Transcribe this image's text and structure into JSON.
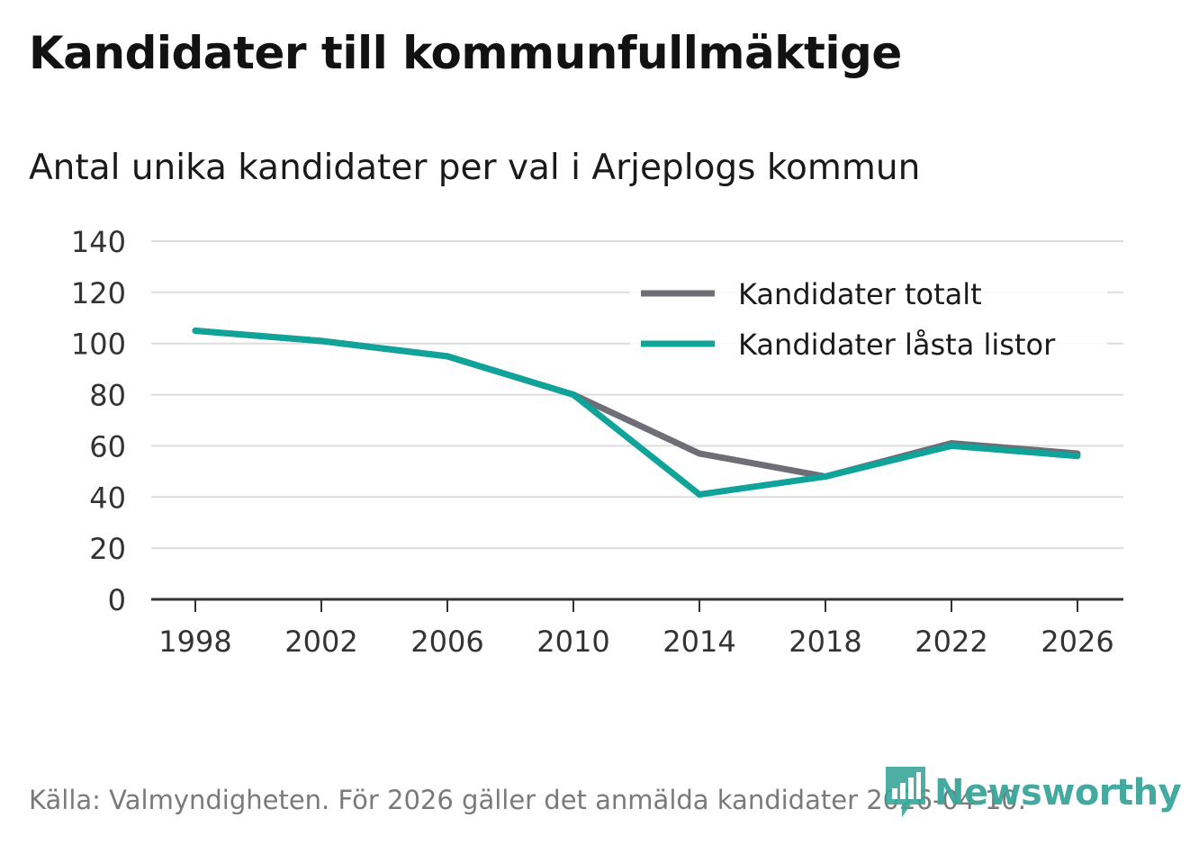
{
  "title": "Kandidater till kommunfullmäktige",
  "subtitle": "Antal unika kandidater per val i Arjeplogs kommun",
  "source": "Källa: Valmyndigheten. För 2026 gäller det anmälda kandidater 2026-04-10.",
  "logo": {
    "text": "Newsworthy",
    "icon": "bar-chart-speech-bubble-icon"
  },
  "colors": {
    "total": "#6e6e76",
    "locked": "#0fa39a",
    "grid": "#dddddd",
    "axis": "#333333",
    "logo": "#3aa69a"
  },
  "chart_data": {
    "type": "line",
    "title": "Kandidater till kommunfullmäktige",
    "subtitle": "Antal unika kandidater per val i Arjeplogs kommun",
    "x": [
      "1998",
      "2002",
      "2006",
      "2010",
      "2014",
      "2018",
      "2022",
      "2026"
    ],
    "y_ticks": [
      "0",
      "20",
      "40",
      "60",
      "80",
      "100",
      "120",
      "140"
    ],
    "ylim": [
      0,
      140
    ],
    "xlabel": "",
    "ylabel": "",
    "grid": true,
    "legend_position": "top-right",
    "series": [
      {
        "name": "Kandidater totalt",
        "color": "#6e6e76",
        "values": [
          105,
          101,
          95,
          80,
          57,
          48,
          61,
          57
        ]
      },
      {
        "name": "Kandidater låsta listor",
        "color": "#0fa39a",
        "values": [
          105,
          101,
          95,
          80,
          41,
          48,
          60,
          56
        ]
      }
    ]
  }
}
